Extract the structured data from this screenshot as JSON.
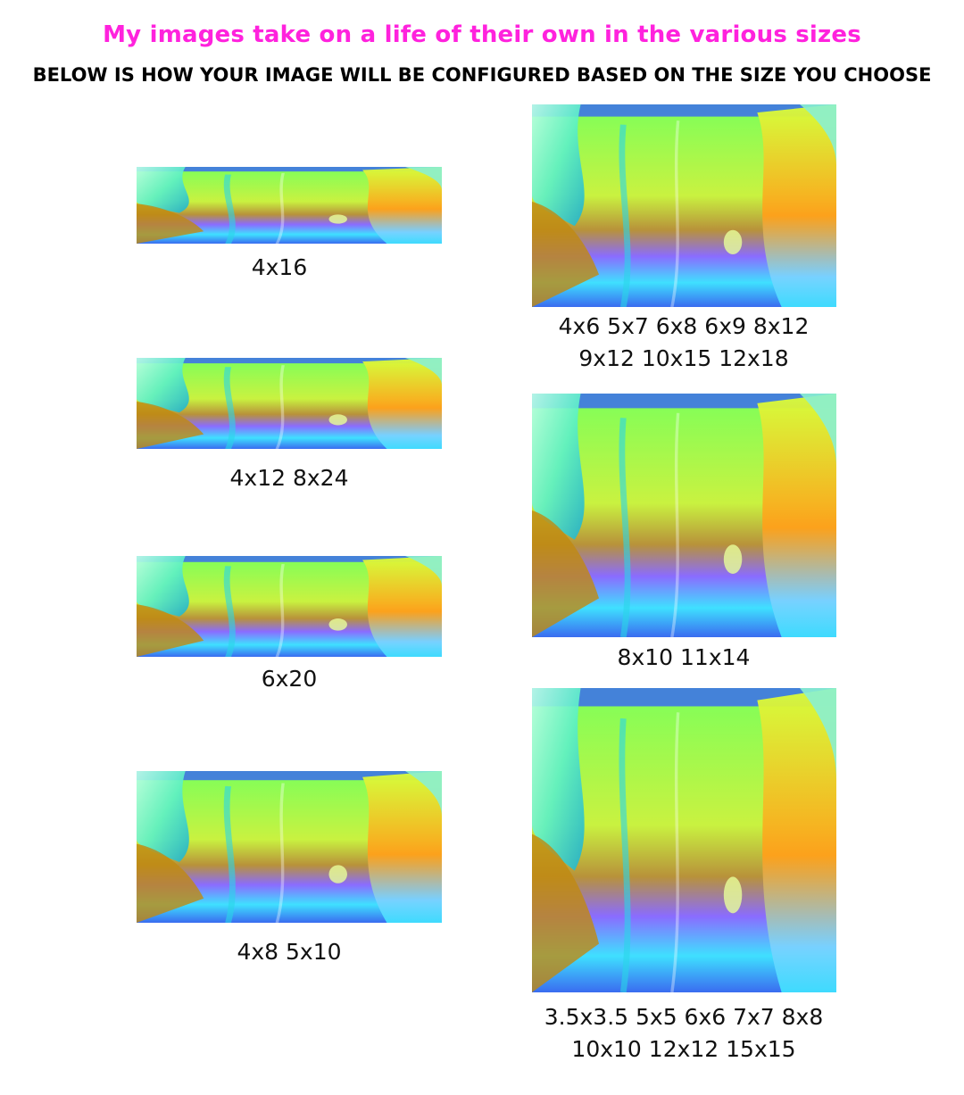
{
  "headline": "My images take on a life of their own in the various sizes",
  "subhead": "BELOW IS HOW YOUR IMAGE WILL BE CONFIGURED BASED ON THE SIZE YOU CHOOSE",
  "colors": {
    "headline": "#ff22dd",
    "paint_green": "#7dff5a",
    "paint_cyan": "#3fe0ff",
    "paint_orange": "#ffa01a",
    "paint_violet": "#8a6cff",
    "paint_blue": "#3a6cf0"
  },
  "crops": [
    {
      "id": "4x16",
      "caption_lines": [
        "4x16"
      ]
    },
    {
      "id": "4x12",
      "caption_lines": [
        "4x12   8x24"
      ]
    },
    {
      "id": "6x20",
      "caption_lines": [
        "6x20"
      ]
    },
    {
      "id": "4x8",
      "caption_lines": [
        "4x8   5x10"
      ]
    },
    {
      "id": "4x6",
      "caption_lines": [
        "4x6   5x7   6x8   6x9   8x12",
        "9x12   10x15   12x18"
      ]
    },
    {
      "id": "8x10",
      "caption_lines": [
        "8x10   11x14"
      ]
    },
    {
      "id": "sq",
      "caption_lines": [
        "3.5x3.5   5x5   6x6   7x7   8x8",
        "10x10   12x12   15x15"
      ]
    }
  ]
}
